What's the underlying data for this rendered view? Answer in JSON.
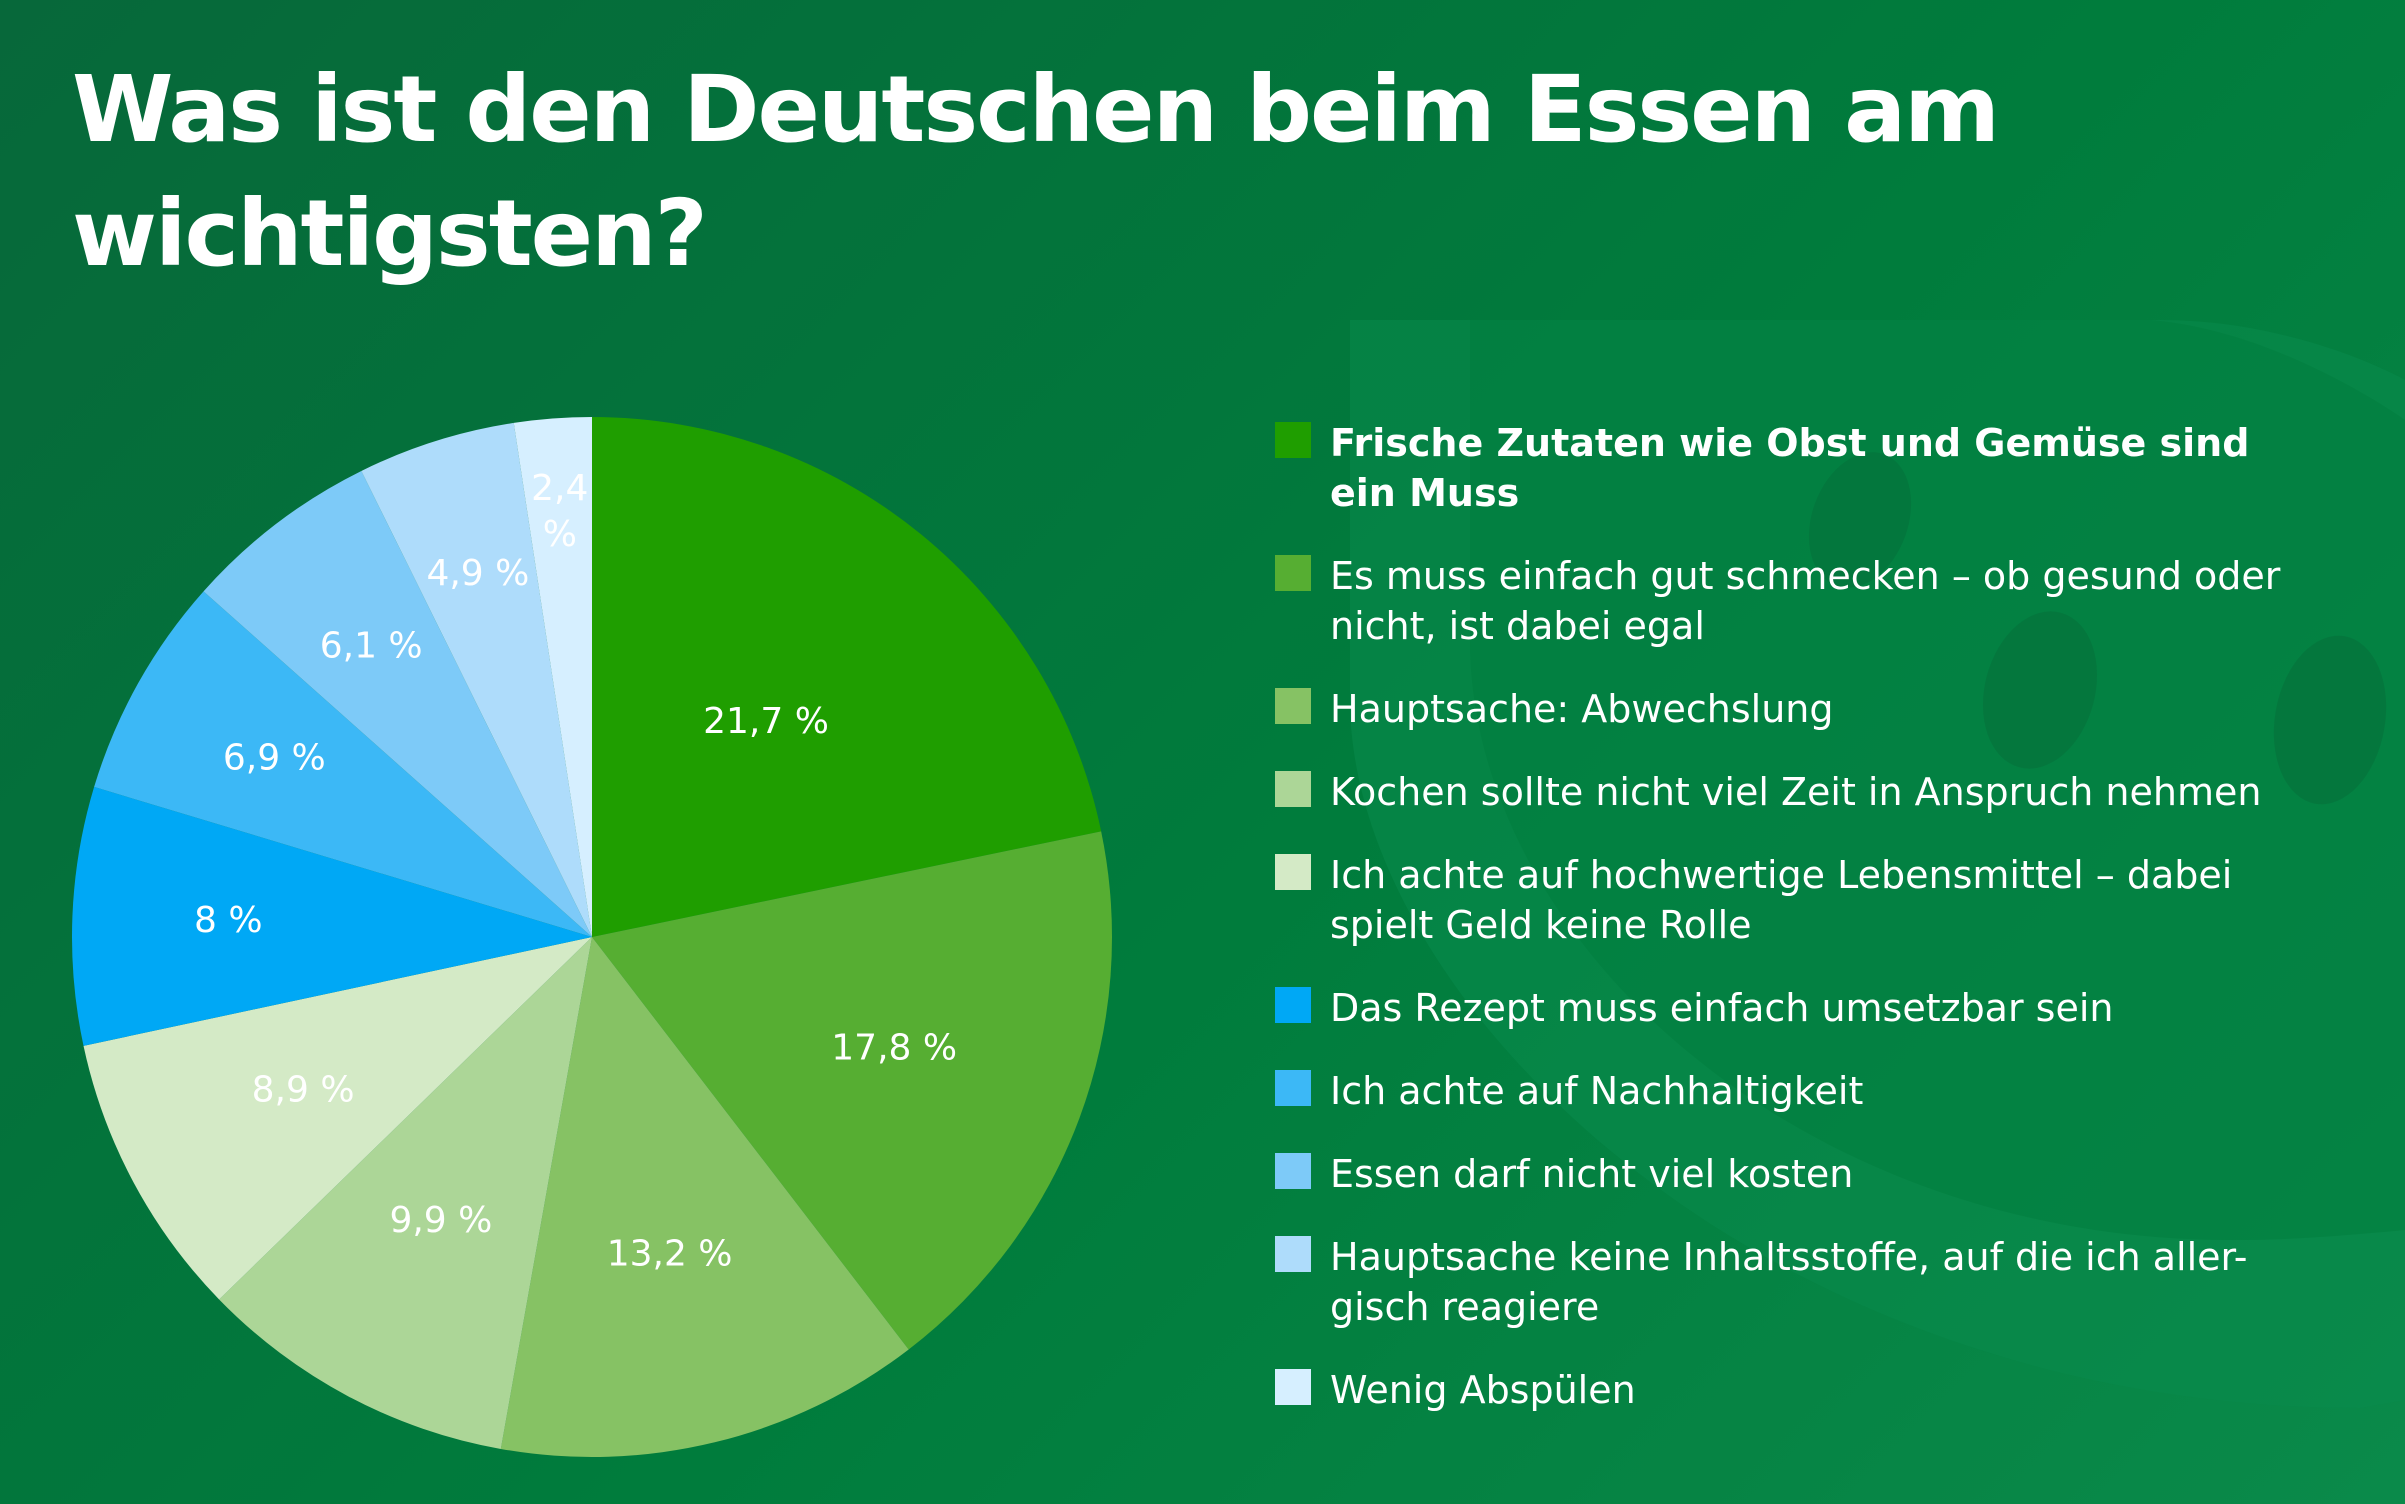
{
  "title": "Was ist den Deutschen beim Essen am wichtigsten?",
  "chart_data": {
    "type": "pie",
    "title": "Was ist den Deutschen beim Essen am wichtigsten?",
    "slices": [
      {
        "label": "Frische Zutaten wie Obst und Gemüse sind ein Muss",
        "value": 21.7,
        "value_label": "21,7 %",
        "color": "#1f9e00"
      },
      {
        "label": "Es muss einfach gut schmecken – ob gesund oder nicht, ist dabei egal",
        "value": 17.8,
        "value_label": "17,8 %",
        "color": "#56ae32"
      },
      {
        "label": "Hauptsache: Abwechslung",
        "value": 13.2,
        "value_label": "13,2 %",
        "color": "#86c264"
      },
      {
        "label": "Kochen sollte nicht viel Zeit in Anspruch nehmen",
        "value": 9.9,
        "value_label": "9,9 %",
        "color": "#acd697"
      },
      {
        "label": "Ich achte auf hochwertige Lebensmittel – dabei spielt Geld keine Rolle",
        "value": 8.9,
        "value_label": "8,9 %",
        "color": "#d4eac6"
      },
      {
        "label": "Das Rezept muss einfach umsetzbar sein",
        "value": 8.0,
        "value_label": "8 %",
        "color": "#00a8f5"
      },
      {
        "label": "Ich achte auf Nachhaltigkeit",
        "value": 6.9,
        "value_label": "6,9 %",
        "color": "#3cb8f6"
      },
      {
        "label": "Essen darf nicht viel kosten",
        "value": 6.1,
        "value_label": "6,1 %",
        "color": "#7dcaf8"
      },
      {
        "label": "Hauptsache keine Inhaltsstoffe, auf die ich aller-gisch reagiere",
        "value": 4.9,
        "value_label": "4,9 %",
        "color": "#aedcfb"
      },
      {
        "label": "Wenig Abspülen",
        "value": 2.4,
        "value_label": "2,4 %",
        "color": "#d6efff"
      }
    ],
    "legend_position": "right",
    "start_angle": "12 o'clock",
    "direction": "clockwise"
  }
}
